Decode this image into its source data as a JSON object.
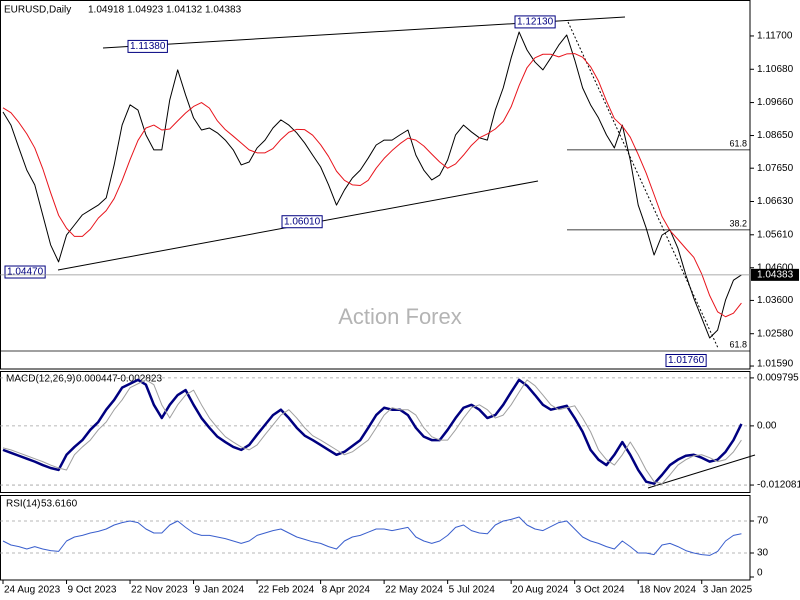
{
  "chart_data": [
    {
      "type": "line",
      "title": "EURUSD,Daily",
      "ohlc": [
        1.04918,
        1.04923,
        1.04132,
        1.04383
      ],
      "watermark": "Action Forex",
      "categories": [
        "24 Aug 2023",
        null,
        null,
        null,
        null,
        null,
        null,
        null,
        "9 Oct 2023",
        null,
        null,
        null,
        null,
        null,
        null,
        null,
        "22 Nov 2023",
        null,
        null,
        null,
        null,
        null,
        null,
        null,
        "9 Jan 2024",
        null,
        null,
        null,
        null,
        null,
        null,
        null,
        "22 Feb 2024",
        null,
        null,
        null,
        null,
        null,
        null,
        null,
        "8 Apr 2024",
        null,
        null,
        null,
        null,
        null,
        null,
        null,
        "22 May 2024",
        null,
        null,
        null,
        null,
        null,
        null,
        null,
        "5 Jul 2024",
        null,
        null,
        null,
        null,
        null,
        null,
        null,
        "20 Aug 2024",
        null,
        null,
        null,
        null,
        null,
        null,
        null,
        "3 Oct 2024",
        null,
        null,
        null,
        null,
        null,
        null,
        null,
        "18 Nov 2024",
        null,
        null,
        null,
        null,
        null,
        null,
        null,
        "3 Jan 2025",
        null,
        null,
        null,
        null,
        null
      ],
      "series": [
        {
          "color": "#000000",
          "values": [
            1.0937,
            1.0897,
            1.0827,
            1.0759,
            1.0714,
            1.0622,
            1.053,
            1.0478,
            1.056,
            1.0591,
            1.0622,
            1.0637,
            1.0652,
            1.0674,
            1.0775,
            1.0897,
            1.0959,
            1.0943,
            1.0867,
            1.0821,
            1.0821,
            1.0974,
            1.1066,
            1.0989,
            1.0919,
            1.0882,
            1.0888,
            1.0873,
            1.0851,
            1.0821,
            1.0775,
            1.0784,
            1.0827,
            1.0851,
            1.0888,
            1.0913,
            1.0897,
            1.0873,
            1.0842,
            1.0805,
            1.0769,
            1.0714,
            1.0652,
            1.0698,
            1.0735,
            1.0759,
            1.0796,
            1.0836,
            1.0851,
            1.0851,
            1.0867,
            1.0882,
            1.0805,
            1.0759,
            1.0729,
            1.0744,
            1.079,
            1.0867,
            1.0897,
            1.0876,
            1.0858,
            1.0851,
            1.0943,
            1.1011,
            1.1103,
            1.1182,
            1.1127,
            1.109,
            1.1066,
            1.1103,
            1.1142,
            1.1173,
            1.1097,
            1.1011,
            1.0959,
            1.0919,
            1.0867,
            1.0827,
            1.0897,
            1.079,
            1.0652,
            1.0582,
            1.0499,
            1.056,
            1.0576,
            1.052,
            1.0438,
            1.0367,
            1.0306,
            1.0245,
            1.0269,
            1.0361,
            1.0422,
            1.0438
          ]
        },
        {
          "color": "#e8141c",
          "values": [
            1.095,
            1.0935,
            1.0905,
            1.087,
            1.0827,
            1.0764,
            1.069,
            1.0621,
            1.0581,
            1.0556,
            1.0556,
            1.0578,
            1.0612,
            1.0635,
            1.0672,
            1.0727,
            1.0791,
            1.085,
            1.0888,
            1.0897,
            1.0882,
            1.0885,
            1.091,
            1.0934,
            1.0954,
            1.0966,
            1.0949,
            1.091,
            1.0883,
            1.0863,
            1.0842,
            1.0821,
            1.0812,
            1.0812,
            1.0825,
            1.0853,
            1.0875,
            1.0884,
            1.0883,
            1.0866,
            1.0837,
            1.0801,
            1.0756,
            1.0728,
            1.0714,
            1.0712,
            1.0728,
            1.0765,
            1.0795,
            1.0819,
            1.084,
            1.0857,
            1.0851,
            1.0833,
            1.0808,
            1.0784,
            1.0765,
            1.0778,
            1.0805,
            1.0835,
            1.0858,
            1.087,
            1.0885,
            1.0908,
            1.0953,
            1.1018,
            1.1073,
            1.1103,
            1.1114,
            1.1114,
            1.1106,
            1.1115,
            1.1116,
            1.1105,
            1.1076,
            1.1032,
            1.0971,
            1.0917,
            1.0894,
            1.086,
            1.0807,
            1.075,
            1.0684,
            1.0617,
            1.0574,
            1.0547,
            1.0519,
            1.0492,
            1.0441,
            1.0375,
            1.0325,
            1.031,
            1.0321,
            1.0352
          ]
        }
      ],
      "ylim": [
        1.0153,
        1.1274
      ],
      "yticks": [
        {
          "value": 1.117,
          "label": "1.11700"
        },
        {
          "value": 1.1068,
          "label": "1.10680"
        },
        {
          "value": 1.0966,
          "label": "1.09660"
        },
        {
          "value": 1.0865,
          "label": "1.08650"
        },
        {
          "value": 1.0765,
          "label": "1.07650"
        },
        {
          "value": 1.0663,
          "label": "1.06630"
        },
        {
          "value": 1.0561,
          "label": "1.05610"
        },
        {
          "value": 1.046,
          "label": "1.04600"
        },
        {
          "value": 1.036,
          "label": "1.03600"
        },
        {
          "value": 1.0258,
          "label": "1.02580"
        },
        {
          "value": 1.0159,
          "label": "1.01590"
        }
      ],
      "current": {
        "value": 1.04383,
        "label": "1.04383"
      },
      "annotations": [
        {
          "value": 1.1138,
          "label": "1.11380"
        },
        {
          "value": 1.1213,
          "label": "1.12130"
        },
        {
          "value": 1.0601,
          "label": "1.06010"
        },
        {
          "value": 1.0447,
          "label": "1.04470"
        },
        {
          "value": 1.0176,
          "label": "1.01760"
        }
      ],
      "fib_levels": [
        {
          "ratio": 61.8,
          "price": 1.0821
        },
        {
          "ratio": 38.2,
          "price": 1.0576
        },
        {
          "ratio": 61.8,
          "price": 1.0205
        }
      ]
    },
    {
      "type": "line",
      "title": "MACD(12,26,9)",
      "readings": [
        0.000447,
        -0.002823
      ],
      "series": [
        {
          "color": "#000080",
          "values": [
            -0.0049,
            -0.0055,
            -0.0061,
            -0.0067,
            -0.0073,
            -0.008,
            -0.0086,
            -0.009,
            -0.0059,
            -0.0043,
            -0.0029,
            -0.0008,
            0.0008,
            0.0033,
            0.0053,
            0.0078,
            0.0086,
            0.0094,
            0.0084,
            0.0043,
            0.0016,
            0.0043,
            0.0063,
            0.0073,
            0.0043,
            0.0016,
            -0.0004,
            -0.0022,
            -0.0033,
            -0.0043,
            -0.0049,
            -0.0039,
            -0.0018,
            0.0002,
            0.0022,
            0.0033,
            0.0016,
            -0.0004,
            -0.002,
            -0.0029,
            -0.0039,
            -0.0049,
            -0.0059,
            -0.0053,
            -0.0041,
            -0.0029,
            -0.0004,
            0.0022,
            0.0037,
            0.0033,
            0.0033,
            0.0022,
            -0.0004,
            -0.0022,
            -0.0029,
            -0.0029,
            -0.0008,
            0.0016,
            0.0037,
            0.0043,
            0.0033,
            0.0016,
            0.0022,
            0.0043,
            0.0069,
            0.0094,
            0.0082,
            0.0063,
            0.0043,
            0.0033,
            0.0037,
            0.0041,
            0.0016,
            -0.0012,
            -0.0049,
            -0.0069,
            -0.008,
            -0.0059,
            -0.0033,
            -0.0059,
            -0.009,
            -0.0114,
            -0.0118,
            -0.01,
            -0.008,
            -0.0069,
            -0.0061,
            -0.0059,
            -0.0065,
            -0.0073,
            -0.0069,
            -0.0053,
            -0.0029,
            0.0004
          ]
        },
        {
          "color": "#a0a0a0",
          "values": [
            -0.0045,
            -0.0049,
            -0.0055,
            -0.0061,
            -0.0067,
            -0.0073,
            -0.008,
            -0.0086,
            -0.009,
            -0.0059,
            -0.0043,
            -0.0029,
            -0.0008,
            0.0008,
            0.0033,
            0.0053,
            0.0078,
            0.0086,
            0.0094,
            0.0084,
            0.0043,
            0.0016,
            0.0043,
            0.0063,
            0.0073,
            0.0043,
            0.0016,
            -0.0004,
            -0.0022,
            -0.0033,
            -0.0043,
            -0.0049,
            -0.0039,
            -0.0018,
            0.0002,
            0.0022,
            0.0033,
            0.0016,
            -0.0004,
            -0.002,
            -0.0029,
            -0.0039,
            -0.0049,
            -0.0059,
            -0.0053,
            -0.0041,
            -0.0029,
            -0.0004,
            0.0022,
            0.0037,
            0.0033,
            0.0033,
            0.0022,
            -0.0004,
            -0.0022,
            -0.0029,
            -0.0029,
            -0.0008,
            0.0016,
            0.0037,
            0.0043,
            0.0033,
            0.0016,
            0.0022,
            0.0043,
            0.0069,
            0.0094,
            0.0082,
            0.0063,
            0.0043,
            0.0033,
            0.0037,
            0.0041,
            0.0016,
            -0.0012,
            -0.0049,
            -0.0069,
            -0.008,
            -0.0059,
            -0.0033,
            -0.0059,
            -0.009,
            -0.0114,
            -0.0118,
            -0.01,
            -0.008,
            -0.0069,
            -0.0061,
            -0.0059,
            -0.0065,
            -0.0073,
            -0.0069,
            -0.0053,
            -0.0029
          ]
        }
      ],
      "ylim": [
        -0.0135,
        0.011
      ],
      "yticks": [
        0.009795,
        {
          "value": 0,
          "label": "0.00"
        },
        -0.012081
      ],
      "grid": true
    },
    {
      "type": "line",
      "title": "RSI(14)",
      "readings": [
        {
          "value": 53.616,
          "label": "53.6160"
        }
      ],
      "series": [
        {
          "color": "#3a5fcd",
          "values": [
            45,
            40,
            38,
            35,
            38,
            35,
            33,
            32,
            45,
            50,
            52,
            55,
            57,
            60,
            65,
            68,
            70,
            68,
            60,
            55,
            55,
            65,
            70,
            62,
            55,
            52,
            52,
            50,
            48,
            45,
            42,
            45,
            52,
            55,
            58,
            60,
            55,
            50,
            47,
            44,
            42,
            38,
            35,
            45,
            50,
            52,
            56,
            60,
            60,
            58,
            60,
            62,
            50,
            45,
            42,
            45,
            52,
            62,
            65,
            58,
            55,
            54,
            65,
            70,
            72,
            75,
            65,
            60,
            58,
            63,
            68,
            70,
            60,
            50,
            45,
            42,
            38,
            35,
            45,
            38,
            30,
            30,
            28,
            40,
            42,
            38,
            33,
            30,
            28,
            27,
            32,
            45,
            52,
            54
          ]
        }
      ],
      "ylim": [
        0,
        100
      ],
      "yticks": [
        70,
        30,
        0
      ],
      "grid": true
    }
  ]
}
